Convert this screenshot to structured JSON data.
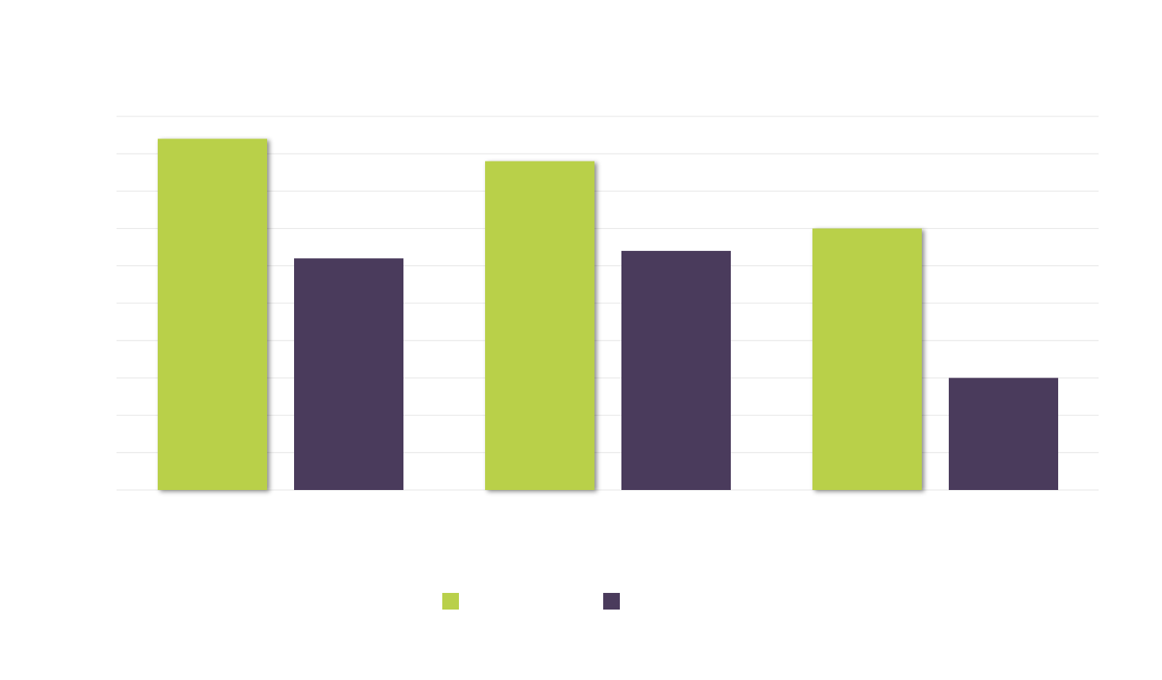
{
  "colors": {
    "series_1": "#b9d04a",
    "series_2": "#4a3b5c",
    "grid": "#e4e4e4",
    "background": "#ffffff"
  },
  "caption": "",
  "chart_data": {
    "type": "bar",
    "title": "",
    "xlabel": "",
    "ylabel": "",
    "categories": [
      "",
      "",
      ""
    ],
    "series": [
      {
        "name": "",
        "values": [
          94,
          88,
          70
        ]
      },
      {
        "name": "",
        "values": [
          62,
          64,
          30
        ]
      }
    ],
    "ylim": [
      0,
      100
    ],
    "grid": true,
    "legend_position": "bottom"
  }
}
